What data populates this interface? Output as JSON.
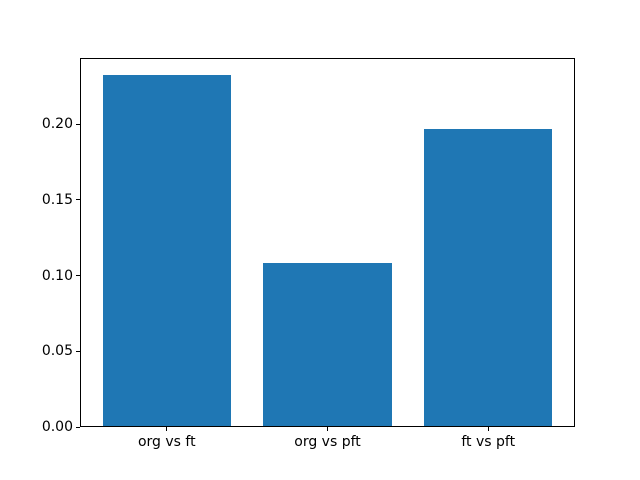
{
  "figure": {
    "background": "#ffffff"
  },
  "chart_data": {
    "type": "bar",
    "categories": [
      "org vs ft",
      "org vs pft",
      "ft vs pft"
    ],
    "values": [
      0.233,
      0.108,
      0.197
    ],
    "ytick_labels": [
      "0.00",
      "0.05",
      "0.10",
      "0.15",
      "0.20"
    ],
    "ylim": [
      0,
      0.2437
    ],
    "xlim": [
      -0.54,
      2.54
    ],
    "bar_width": 0.8,
    "bar_color": "#1f77b4",
    "spine_color": "#000000",
    "text_color": "#000000",
    "grid": false,
    "legend": null
  }
}
